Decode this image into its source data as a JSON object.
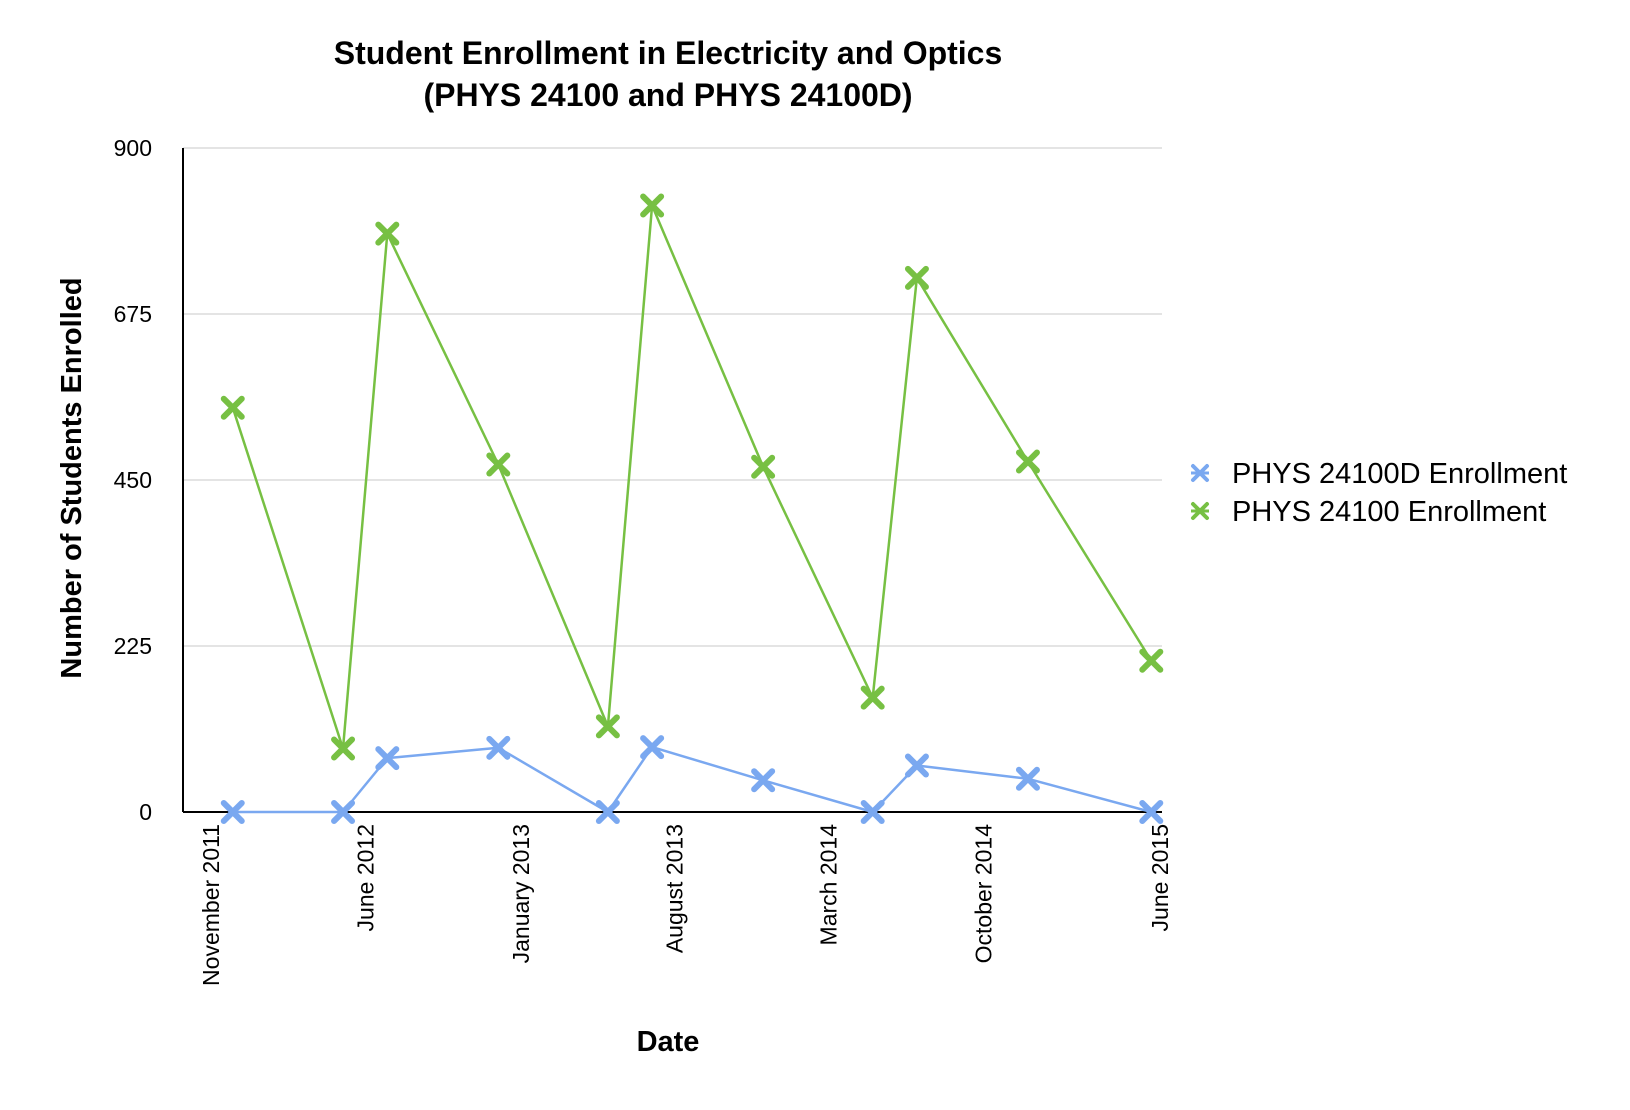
{
  "chart_data": {
    "type": "line",
    "title": "Student Enrollment in Electricity and Optics",
    "subtitle": "(PHYS 24100 and PHYS 24100D)",
    "xlabel": "Date",
    "ylabel": "Number of Students Enrolled",
    "ylim": [
      0,
      900
    ],
    "yticks": [
      "0",
      "225",
      "450",
      "675",
      "900"
    ],
    "x_tick_labels": [
      "November 2011",
      "June 2012",
      "January 2013",
      "August 2013",
      "March 2014",
      "October 2014",
      "June 2015"
    ],
    "x_tick_dates": [
      "2011-11-01",
      "2012-06-01",
      "2013-01-01",
      "2013-08-01",
      "2014-03-01",
      "2014-10-01",
      "2015-06-01"
    ],
    "x_range": [
      "2011-11-01",
      "2015-06-01"
    ],
    "grid": true,
    "legend_position": "right",
    "series": [
      {
        "name": "PHYS 24100D Enrollment",
        "color": "#7aa8f0",
        "marker": "x",
        "points": [
          {
            "x": "2011-12-01",
            "y": 0
          },
          {
            "x": "2012-05-01",
            "y": 0
          },
          {
            "x": "2012-07-01",
            "y": 73
          },
          {
            "x": "2012-12-01",
            "y": 87
          },
          {
            "x": "2013-05-01",
            "y": 0
          },
          {
            "x": "2013-07-01",
            "y": 88
          },
          {
            "x": "2013-12-01",
            "y": 43
          },
          {
            "x": "2014-05-01",
            "y": 0
          },
          {
            "x": "2014-07-01",
            "y": 63
          },
          {
            "x": "2014-12-01",
            "y": 45
          },
          {
            "x": "2015-05-20",
            "y": 0
          }
        ]
      },
      {
        "name": "PHYS 24100 Enrollment",
        "color": "#77c043",
        "marker": "x",
        "points": [
          {
            "x": "2011-12-01",
            "y": 548
          },
          {
            "x": "2012-05-01",
            "y": 86
          },
          {
            "x": "2012-07-01",
            "y": 784
          },
          {
            "x": "2012-12-01",
            "y": 471
          },
          {
            "x": "2013-05-01",
            "y": 116
          },
          {
            "x": "2013-07-01",
            "y": 822
          },
          {
            "x": "2013-12-01",
            "y": 468
          },
          {
            "x": "2014-05-01",
            "y": 155
          },
          {
            "x": "2014-07-01",
            "y": 724
          },
          {
            "x": "2014-12-01",
            "y": 475
          },
          {
            "x": "2015-05-20",
            "y": 205
          }
        ]
      }
    ]
  }
}
